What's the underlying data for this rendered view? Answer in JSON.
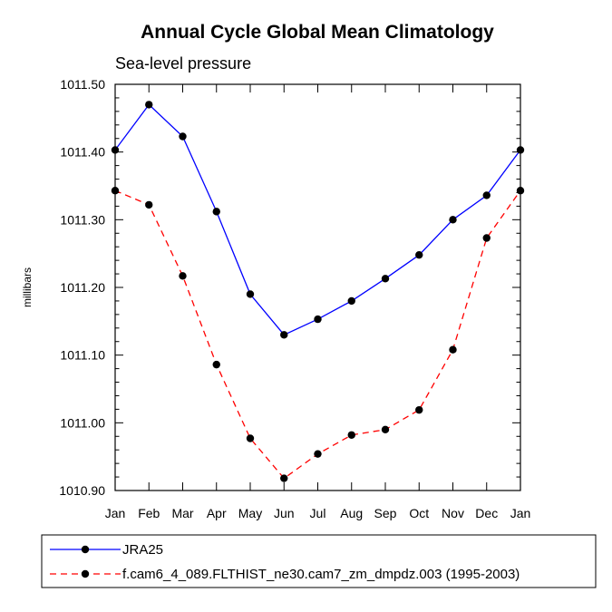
{
  "chart_data": {
    "type": "line",
    "title": "Annual Cycle Global Mean Climatology",
    "subtitle": "Sea-level pressure",
    "ylabel": "millibars",
    "xlabel": "",
    "ylim": [
      1010.9,
      1011.5
    ],
    "yticks": [
      "1010.90",
      "1011.00",
      "1011.10",
      "1011.20",
      "1011.30",
      "1011.40",
      "1011.50"
    ],
    "categories": [
      "Jan",
      "Feb",
      "Mar",
      "Apr",
      "May",
      "Jun",
      "Jul",
      "Aug",
      "Sep",
      "Oct",
      "Nov",
      "Dec",
      "Jan"
    ],
    "grid": false,
    "legend_position": "bottom",
    "series": [
      {
        "name": "JRA25",
        "color": "#0000ff",
        "dashed": false,
        "values": [
          1011.403,
          1011.47,
          1011.423,
          1011.312,
          1011.19,
          1011.13,
          1011.153,
          1011.18,
          1011.213,
          1011.248,
          1011.3,
          1011.336,
          1011.403
        ]
      },
      {
        "name": "f.cam6_4_089.FLTHIST_ne30.cam7_zm_dmpdz.003 (1995-2003)",
        "color": "#ff0000",
        "dashed": true,
        "values": [
          1011.343,
          1011.322,
          1011.217,
          1011.086,
          1010.977,
          1010.918,
          1010.954,
          1010.982,
          1010.99,
          1011.019,
          1011.108,
          1011.273,
          1011.343
        ]
      }
    ]
  }
}
